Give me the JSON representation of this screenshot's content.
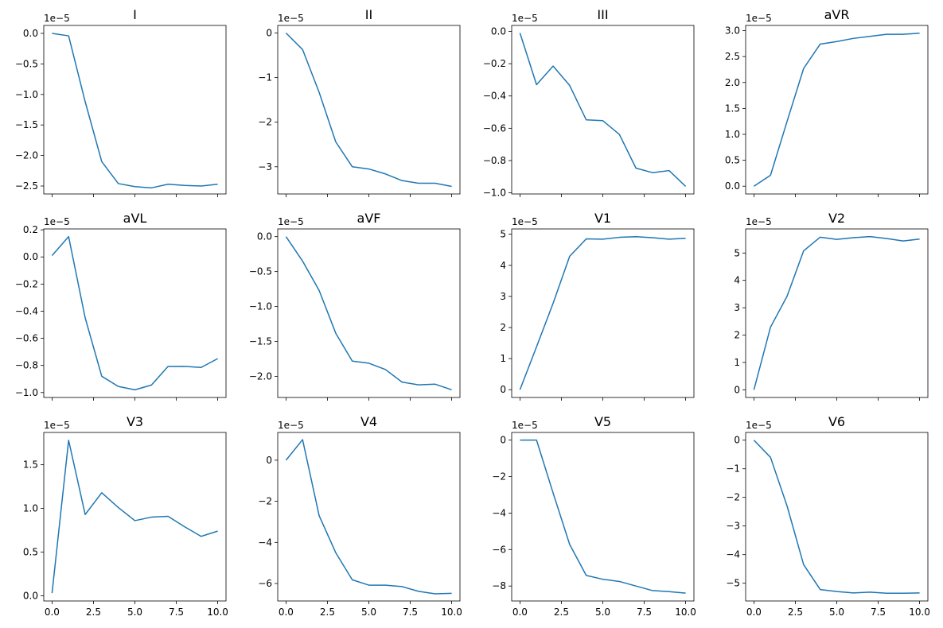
{
  "figure": {
    "line_color": "#1f77b4"
  },
  "chart_data": [
    {
      "type": "line",
      "title": "I",
      "offset_text": "1e−5",
      "x": [
        0,
        1,
        2,
        3,
        4,
        5,
        6,
        7,
        8,
        9,
        10
      ],
      "y": [
        0.0,
        -0.04,
        -1.12,
        -2.1,
        -2.46,
        -2.51,
        -2.53,
        -2.47,
        -2.49,
        -2.5,
        -2.47
      ],
      "ylim": [
        -2.63,
        0.13
      ],
      "yticks": [
        0.0,
        -0.5,
        -1.0,
        -1.5,
        -2.0,
        -2.5
      ],
      "ytick_labels": [
        "0.0",
        "−0.5",
        "−1.0",
        "−1.5",
        "−2.0",
        "−2.5"
      ],
      "xlim": [
        -0.5,
        10.5
      ],
      "xticks": [
        0,
        2.5,
        5,
        7.5,
        10
      ],
      "xtick_labels": []
    },
    {
      "type": "line",
      "title": "II",
      "offset_text": "1e−5",
      "x": [
        0,
        1,
        2,
        3,
        4,
        5,
        6,
        7,
        8,
        9,
        10
      ],
      "y": [
        0.0,
        -0.37,
        -1.33,
        -2.44,
        -3.0,
        -3.05,
        -3.16,
        -3.31,
        -3.37,
        -3.37,
        -3.44
      ],
      "ylim": [
        -3.61,
        0.17
      ],
      "yticks": [
        0,
        -1,
        -2,
        -3
      ],
      "ytick_labels": [
        "0",
        "−1",
        "−2",
        "−3"
      ],
      "xlim": [
        -0.5,
        10.5
      ],
      "xticks": [
        0,
        2.5,
        5,
        7.5,
        10
      ],
      "xtick_labels": []
    },
    {
      "type": "line",
      "title": "III",
      "offset_text": "1e−5",
      "x": [
        0,
        1,
        2,
        3,
        4,
        5,
        6,
        7,
        8,
        9,
        10
      ],
      "y": [
        -0.01,
        -0.33,
        -0.215,
        -0.335,
        -0.548,
        -0.553,
        -0.638,
        -0.847,
        -0.875,
        -0.862,
        -0.96
      ],
      "ylim": [
        -1.007,
        0.037
      ],
      "yticks": [
        0.0,
        -0.2,
        -0.4,
        -0.6,
        -0.8,
        -1.0
      ],
      "ytick_labels": [
        "0.0",
        "−0.2",
        "−0.4",
        "−0.6",
        "−0.8",
        "−1.0"
      ],
      "xlim": [
        -0.5,
        10.5
      ],
      "xticks": [
        0,
        2.5,
        5,
        7.5,
        10
      ],
      "xtick_labels": []
    },
    {
      "type": "line",
      "title": "aVR",
      "offset_text": "1e−5",
      "x": [
        0,
        1,
        2,
        3,
        4,
        5,
        6,
        7,
        8,
        9,
        10
      ],
      "y": [
        0.0,
        0.21,
        1.25,
        2.27,
        2.74,
        2.79,
        2.85,
        2.89,
        2.93,
        2.93,
        2.95
      ],
      "ylim": [
        -0.15,
        3.1
      ],
      "yticks": [
        0.0,
        0.5,
        1.0,
        1.5,
        2.0,
        2.5,
        3.0
      ],
      "ytick_labels": [
        "0.0",
        "0.5",
        "1.0",
        "1.5",
        "2.0",
        "2.5",
        "3.0"
      ],
      "xlim": [
        -0.5,
        10.5
      ],
      "xticks": [
        0,
        2.5,
        5,
        7.5,
        10
      ],
      "xtick_labels": []
    },
    {
      "type": "line",
      "title": "aVL",
      "offset_text": "1e−5",
      "x": [
        0,
        1,
        2,
        3,
        4,
        5,
        6,
        7,
        8,
        9,
        10
      ],
      "y": [
        0.01,
        0.15,
        -0.45,
        -0.88,
        -0.955,
        -0.98,
        -0.945,
        -0.808,
        -0.807,
        -0.815,
        -0.75
      ],
      "ylim": [
        -1.0365,
        0.2065
      ],
      "yticks": [
        0.2,
        0.0,
        -0.2,
        -0.4,
        -0.6,
        -0.8,
        -1.0
      ],
      "ytick_labels": [
        "0.2",
        "0.0",
        "−0.2",
        "−0.4",
        "−0.6",
        "−0.8",
        "−1.0"
      ],
      "xlim": [
        -0.5,
        10.5
      ],
      "xticks": [
        0,
        2.5,
        5,
        7.5,
        10
      ],
      "xtick_labels": []
    },
    {
      "type": "line",
      "title": "aVF",
      "offset_text": "1e−5",
      "x": [
        0,
        1,
        2,
        3,
        4,
        5,
        6,
        7,
        8,
        9,
        10
      ],
      "y": [
        0.0,
        -0.35,
        -0.77,
        -1.38,
        -1.78,
        -1.81,
        -1.9,
        -2.08,
        -2.12,
        -2.11,
        -2.19
      ],
      "ylim": [
        -2.3,
        0.11
      ],
      "yticks": [
        0.0,
        -0.5,
        -1.0,
        -1.5,
        -2.0
      ],
      "ytick_labels": [
        "0.0",
        "−0.5",
        "−1.0",
        "−1.5",
        "−2.0"
      ],
      "xlim": [
        -0.5,
        10.5
      ],
      "xticks": [
        0,
        2.5,
        5,
        7.5,
        10
      ],
      "xtick_labels": []
    },
    {
      "type": "line",
      "title": "V1",
      "offset_text": "1e−5",
      "x": [
        0,
        1,
        2,
        3,
        4,
        5,
        6,
        7,
        8,
        9,
        10
      ],
      "y": [
        0.0,
        1.38,
        2.78,
        4.29,
        4.85,
        4.84,
        4.9,
        4.92,
        4.89,
        4.84,
        4.87
      ],
      "ylim": [
        -0.25,
        5.17
      ],
      "yticks": [
        0,
        1,
        2,
        3,
        4,
        5
      ],
      "ytick_labels": [
        "0",
        "1",
        "2",
        "3",
        "4",
        "5"
      ],
      "xlim": [
        -0.5,
        10.5
      ],
      "xticks": [
        0,
        2.5,
        5,
        7.5,
        10
      ],
      "xtick_labels": []
    },
    {
      "type": "line",
      "title": "V2",
      "offset_text": "1e−5",
      "x": [
        0,
        1,
        2,
        3,
        4,
        5,
        6,
        7,
        8,
        9,
        10
      ],
      "y": [
        0.0,
        2.29,
        3.42,
        5.08,
        5.58,
        5.5,
        5.56,
        5.6,
        5.53,
        5.44,
        5.51
      ],
      "ylim": [
        -0.28,
        5.88
      ],
      "yticks": [
        0,
        1,
        2,
        3,
        4,
        5
      ],
      "ytick_labels": [
        "0",
        "1",
        "2",
        "3",
        "4",
        "5"
      ],
      "xlim": [
        -0.5,
        10.5
      ],
      "xticks": [
        0,
        2.5,
        5,
        7.5,
        10
      ],
      "xtick_labels": []
    },
    {
      "type": "line",
      "title": "V3",
      "offset_text": "1e−5",
      "x": [
        0,
        1,
        2,
        3,
        4,
        5,
        6,
        7,
        8,
        9,
        10
      ],
      "y": [
        0.03,
        1.78,
        0.93,
        1.18,
        1.01,
        0.86,
        0.9,
        0.91,
        0.79,
        0.68,
        0.74
      ],
      "ylim": [
        -0.06,
        1.87
      ],
      "yticks": [
        0.0,
        0.5,
        1.0,
        1.5
      ],
      "ytick_labels": [
        "0.0",
        "0.5",
        "1.0",
        "1.5"
      ],
      "xlim": [
        -0.5,
        10.5
      ],
      "xticks": [
        0,
        2.5,
        5,
        7.5,
        10
      ],
      "xtick_labels": [
        "0.0",
        "2.5",
        "5.0",
        "7.5",
        "10.0"
      ]
    },
    {
      "type": "line",
      "title": "V4",
      "offset_text": "1e−5",
      "x": [
        0,
        1,
        2,
        3,
        4,
        5,
        6,
        7,
        8,
        9,
        10
      ],
      "y": [
        0.0,
        1.0,
        -2.7,
        -4.5,
        -5.82,
        -6.08,
        -6.08,
        -6.15,
        -6.38,
        -6.5,
        -6.48
      ],
      "ylim": [
        -6.85,
        1.35
      ],
      "yticks": [
        0,
        -2,
        -4,
        -6
      ],
      "ytick_labels": [
        "0",
        "−2",
        "−4",
        "−6"
      ],
      "xlim": [
        -0.5,
        10.5
      ],
      "xticks": [
        0,
        2.5,
        5,
        7.5,
        10
      ],
      "xtick_labels": [
        "0.0",
        "2.5",
        "5.0",
        "7.5",
        "10.0"
      ]
    },
    {
      "type": "line",
      "title": "V5",
      "offset_text": "1e−5",
      "x": [
        0,
        1,
        2,
        3,
        4,
        5,
        6,
        7,
        8,
        9,
        10
      ],
      "y": [
        0.0,
        0.0,
        -2.9,
        -5.72,
        -7.42,
        -7.63,
        -7.75,
        -8.0,
        -8.25,
        -8.31,
        -8.39
      ],
      "ylim": [
        -8.82,
        0.42
      ],
      "yticks": [
        0,
        -2,
        -4,
        -6,
        -8
      ],
      "ytick_labels": [
        "0",
        "−2",
        "−4",
        "−6",
        "−8"
      ],
      "xlim": [
        -0.5,
        10.5
      ],
      "xticks": [
        0,
        2.5,
        5,
        7.5,
        10
      ],
      "xtick_labels": [
        "0.0",
        "2.5",
        "5.0",
        "7.5",
        "10.0"
      ]
    },
    {
      "type": "line",
      "title": "V6",
      "offset_text": "1e−5",
      "x": [
        0,
        1,
        2,
        3,
        4,
        5,
        6,
        7,
        8,
        9,
        10
      ],
      "y": [
        0.0,
        -0.6,
        -2.3,
        -4.35,
        -5.22,
        -5.29,
        -5.34,
        -5.31,
        -5.35,
        -5.35,
        -5.34
      ],
      "ylim": [
        -5.62,
        0.27
      ],
      "yticks": [
        0,
        -1,
        -2,
        -3,
        -4,
        -5
      ],
      "ytick_labels": [
        "0",
        "−1",
        "−2",
        "−3",
        "−4",
        "−5"
      ],
      "xlim": [
        -0.5,
        10.5
      ],
      "xticks": [
        0,
        2.5,
        5,
        7.5,
        10
      ],
      "xtick_labels": [
        "0.0",
        "2.5",
        "5.0",
        "7.5",
        "10.0"
      ]
    }
  ]
}
